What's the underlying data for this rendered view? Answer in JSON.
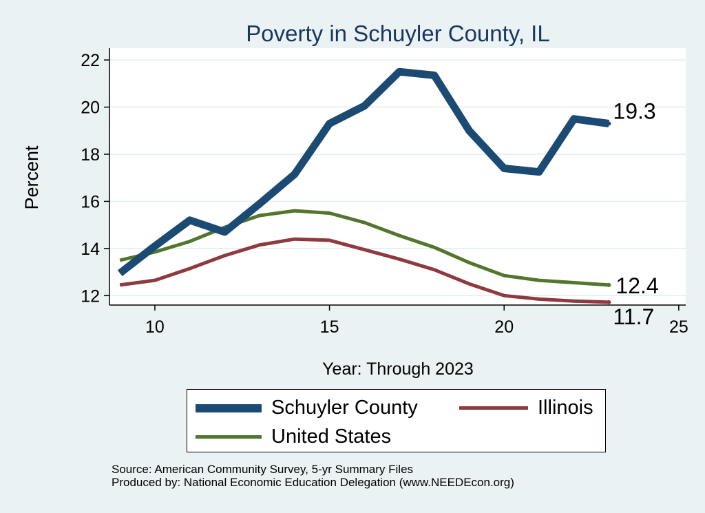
{
  "chart_data": {
    "type": "line",
    "title": "Poverty in Schuyler County, IL",
    "xlabel": "Year: Through 2023",
    "ylabel": "Percent",
    "xlim": [
      8.7,
      25.2
    ],
    "ylim": [
      11.6,
      22.5
    ],
    "xticks": [
      10,
      15,
      20,
      25
    ],
    "yticks": [
      12,
      14,
      16,
      18,
      20,
      22
    ],
    "grid": true,
    "legend_position": "bottom",
    "series": [
      {
        "name": "Schuyler County",
        "color": "#1b4a73",
        "x": [
          9,
          10,
          11,
          12,
          13,
          14,
          15,
          16,
          17,
          18,
          19,
          20,
          21,
          22,
          23
        ],
        "values": [
          12.95,
          14.1,
          15.2,
          14.7,
          15.9,
          17.15,
          19.3,
          20.05,
          21.5,
          21.35,
          19.0,
          17.4,
          17.25,
          19.5,
          19.3
        ],
        "end_label": "19.3"
      },
      {
        "name": "Illinois",
        "color": "#8e3a3f",
        "x": [
          9,
          10,
          11,
          12,
          13,
          14,
          15,
          16,
          17,
          18,
          19,
          20,
          21,
          22,
          23
        ],
        "values": [
          12.45,
          12.65,
          13.15,
          13.7,
          14.15,
          14.4,
          14.35,
          13.95,
          13.55,
          13.1,
          12.5,
          12.0,
          11.85,
          11.77,
          11.72
        ],
        "end_label": "11.7"
      },
      {
        "name": "United States",
        "color": "#53762f",
        "x": [
          9,
          10,
          11,
          12,
          13,
          14,
          15,
          16,
          17,
          18,
          19,
          20,
          21,
          22,
          23
        ],
        "values": [
          13.5,
          13.85,
          14.3,
          14.9,
          15.4,
          15.6,
          15.5,
          15.1,
          14.55,
          14.05,
          13.4,
          12.85,
          12.65,
          12.55,
          12.45
        ],
        "end_label": "12.4"
      }
    ]
  },
  "source_line1": "Source: American Community Survey, 5-yr Summary Files",
  "source_line2": "Produced by: National Economic Education Delegation (www.NEEDEcon.org)"
}
